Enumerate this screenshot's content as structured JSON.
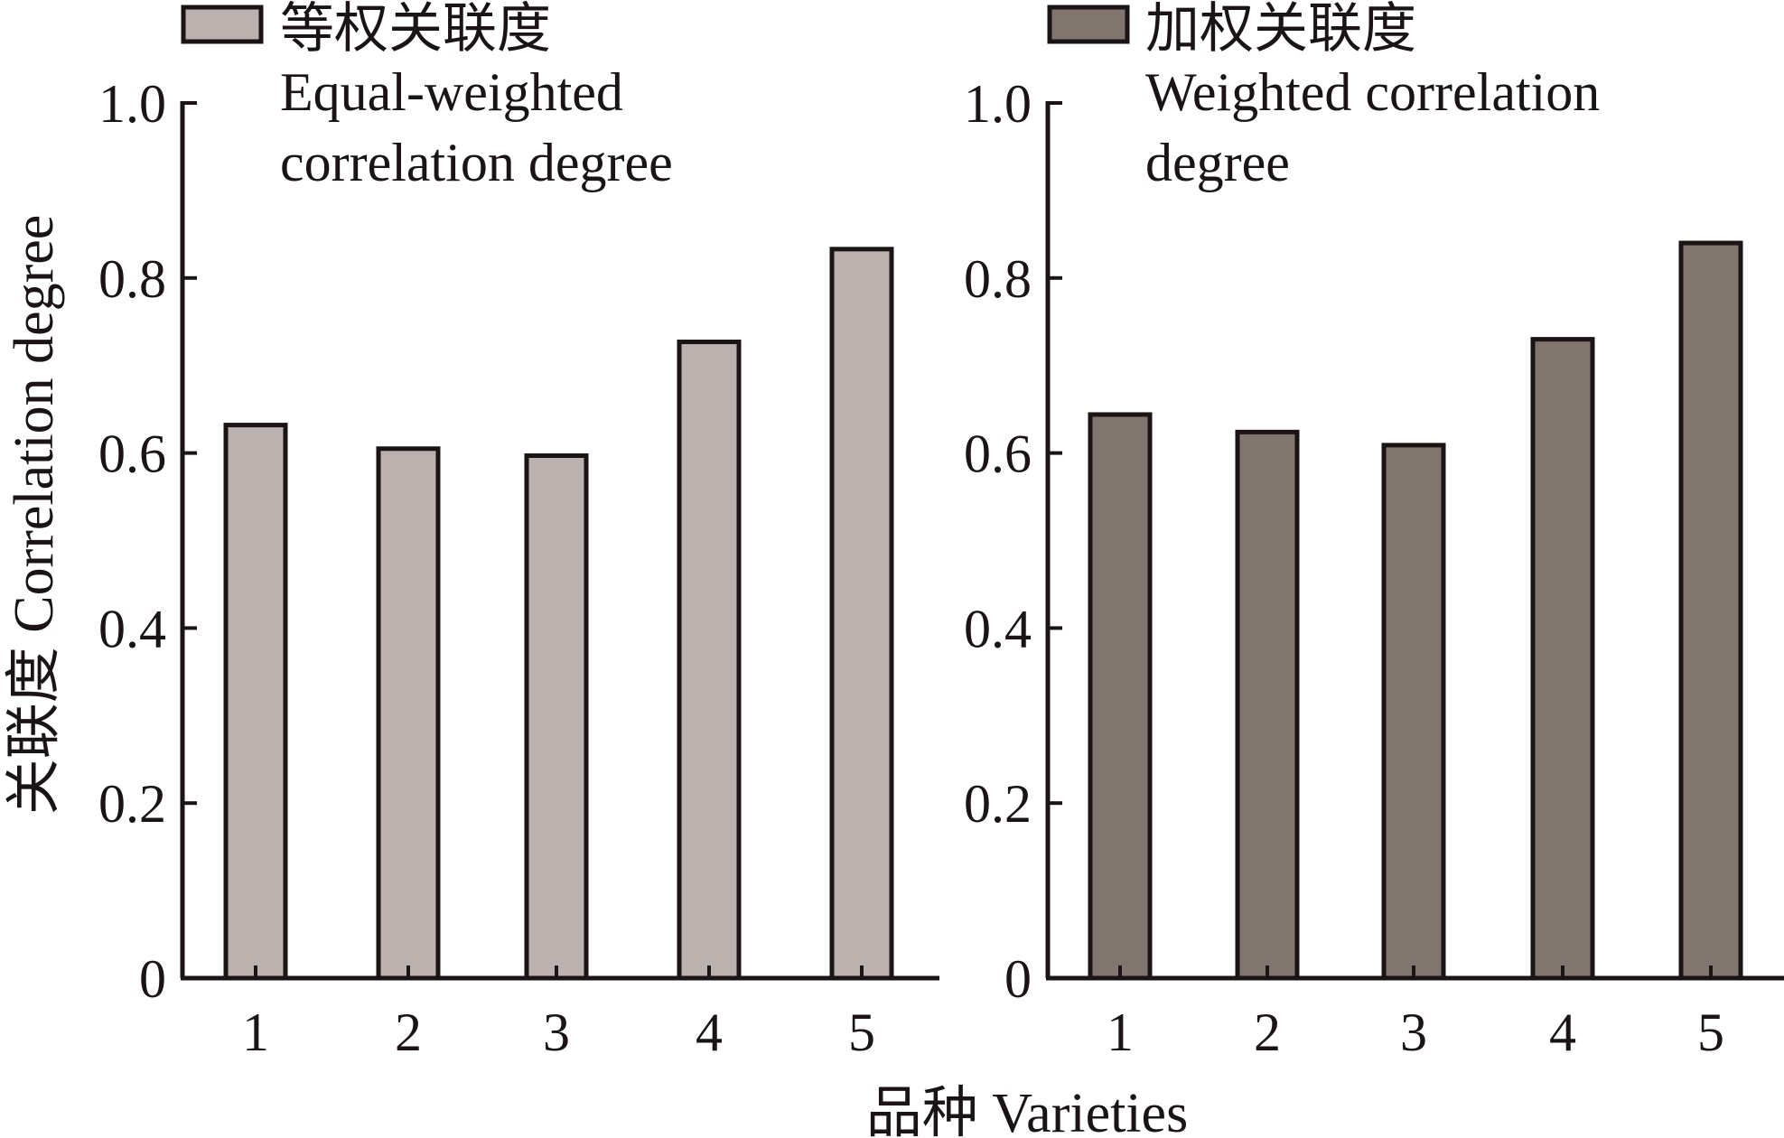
{
  "chart_data": [
    {
      "type": "bar",
      "legend_label_cn": "等权关联度",
      "legend_label_en": [
        "Equal-weighted",
        "correlation degree"
      ],
      "categories": [
        "1",
        "2",
        "3",
        "4",
        "5"
      ],
      "values": [
        0.632,
        0.605,
        0.597,
        0.727,
        0.833
      ],
      "color": "#bbb1ae",
      "yticks": [
        "0",
        "0.2",
        "0.4",
        "0.6",
        "0.8",
        "1.0"
      ],
      "ylim": [
        0,
        1.0
      ],
      "legend_position": "top-left"
    },
    {
      "type": "bar",
      "legend_label_cn": "加权关联度",
      "legend_label_en": [
        "Weighted correlation",
        "degree"
      ],
      "categories": [
        "1",
        "2",
        "3",
        "4",
        "5"
      ],
      "values": [
        0.644,
        0.624,
        0.609,
        0.73,
        0.84
      ],
      "color": "#80756f",
      "yticks": [
        "0",
        "0.2",
        "0.4",
        "0.6",
        "0.8",
        "1.0"
      ],
      "ylim": [
        0,
        1.0
      ],
      "legend_position": "top-left"
    }
  ],
  "ylabel": "关联度 Correlation degree",
  "xlabel": "品种 Varieties"
}
